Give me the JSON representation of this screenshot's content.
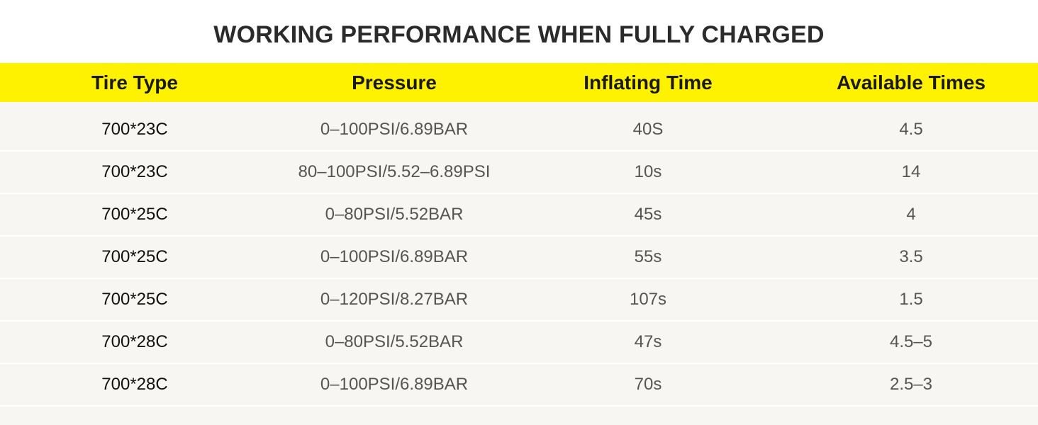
{
  "title": "WORKING PERFORMANCE WHEN FULLY CHARGED",
  "table": {
    "headers": [
      "Tire Type",
      "Pressure",
      "Inflating Time",
      "Available Times"
    ],
    "rows": [
      [
        "700*23C",
        "0–100PSI/6.89BAR",
        "40S",
        "4.5"
      ],
      [
        "700*23C",
        "80–100PSI/5.52–6.89PSI",
        "10s",
        "14"
      ],
      [
        "700*25C",
        "0–80PSI/5.52BAR",
        "45s",
        "4"
      ],
      [
        "700*25C",
        "0–100PSI/6.89BAR",
        "55s",
        "3.5"
      ],
      [
        "700*25C",
        "0–120PSI/8.27BAR",
        "107s",
        "1.5"
      ],
      [
        "700*28C",
        "0–80PSI/5.52BAR",
        "47s",
        "4.5–5"
      ],
      [
        "700*28C",
        "0–100PSI/6.89BAR",
        "70s",
        "2.5–3"
      ]
    ]
  },
  "colors": {
    "header_bg": "#fff200",
    "body_bg": "#f7f6f2",
    "title_text": "#2b2b2b"
  }
}
